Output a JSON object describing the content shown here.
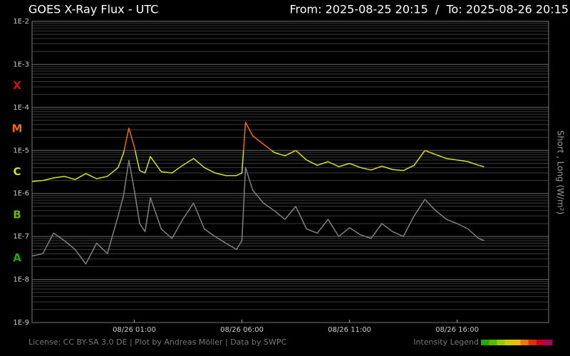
{
  "chart_data": {
    "type": "line",
    "title": "GOES X-Ray Flux - UTC",
    "subtitle": "From: 2025-08-25 20:15  /  To: 2025-08-26 20:15",
    "y_label": "Short , Long (W/m²)",
    "footer": "License: CC BY-SA 3.0 DE | Plot by Andreas Möller | Data by SWPC",
    "intensity_legend": {
      "label": "Intensity Legend",
      "colors": [
        "#22aa00",
        "#55bb00",
        "#99cc00",
        "#cccc00",
        "#eebb00",
        "#ee7700",
        "#dd3300",
        "#cc0022",
        "#aa0055"
      ]
    },
    "log_scale": true,
    "grid": true,
    "classes": [
      {
        "label": "A",
        "value": 1e-08,
        "color": "#22aa00"
      },
      {
        "label": "B",
        "value": 1e-07,
        "color": "#66bb00"
      },
      {
        "label": "C",
        "value": 1e-06,
        "color": "#d4e020"
      },
      {
        "label": "M",
        "value": 1e-05,
        "color": "#ee6a10"
      },
      {
        "label": "X",
        "value": 0.0001,
        "color": "#cc1010"
      }
    ],
    "xlim": [
      "2025-08-25 20:15",
      "2025-08-26 20:15"
    ],
    "xticks": [
      {
        "value": "2025-08-26 01:00",
        "label": "08/26 01:00"
      },
      {
        "value": "2025-08-26 06:00",
        "label": "08/26 06:00"
      },
      {
        "value": "2025-08-26 11:00",
        "label": "08/26 11:00"
      },
      {
        "value": "2025-08-26 16:00",
        "label": "08/26 16:00"
      }
    ],
    "ylim": [
      1e-09,
      0.01
    ],
    "yticks": [
      {
        "value": 1e-09,
        "label": "1E-9"
      },
      {
        "value": 1e-08,
        "label": "1E-8"
      },
      {
        "value": 1e-07,
        "label": "1E-7"
      },
      {
        "value": 1e-06,
        "label": "1E-6"
      },
      {
        "value": 1e-05,
        "label": "1E-5"
      },
      {
        "value": 0.0001,
        "label": "1E-4"
      },
      {
        "value": 0.001,
        "label": "1E-3"
      },
      {
        "value": 0.01,
        "label": "1E-2"
      }
    ],
    "x": [
      "2025-08-25 20:15",
      "2025-08-25 20:45",
      "2025-08-25 21:15",
      "2025-08-25 21:45",
      "2025-08-25 22:15",
      "2025-08-25 22:45",
      "2025-08-25 23:15",
      "2025-08-25 23:45",
      "2025-08-26 00:15",
      "2025-08-26 00:30",
      "2025-08-26 00:45",
      "2025-08-26 01:00",
      "2025-08-26 01:15",
      "2025-08-26 01:30",
      "2025-08-26 01:45",
      "2025-08-26 02:15",
      "2025-08-26 02:45",
      "2025-08-26 03:15",
      "2025-08-26 03:45",
      "2025-08-26 04:15",
      "2025-08-26 04:45",
      "2025-08-26 05:15",
      "2025-08-26 05:45",
      "2025-08-26 06:00",
      "2025-08-26 06:10",
      "2025-08-26 06:30",
      "2025-08-26 07:00",
      "2025-08-26 07:30",
      "2025-08-26 08:00",
      "2025-08-26 08:30",
      "2025-08-26 09:00",
      "2025-08-26 09:30",
      "2025-08-26 10:00",
      "2025-08-26 10:30",
      "2025-08-26 11:00",
      "2025-08-26 11:30",
      "2025-08-26 12:00",
      "2025-08-26 12:30",
      "2025-08-26 13:00",
      "2025-08-26 13:30",
      "2025-08-26 14:00",
      "2025-08-26 14:30",
      "2025-08-26 15:00",
      "2025-08-26 15:30",
      "2025-08-26 16:00",
      "2025-08-26 16:30",
      "2025-08-26 17:00",
      "2025-08-26 17:15"
    ],
    "series": [
      {
        "color": "#808080",
        "values": [
          3.5e-08,
          4e-08,
          1.2e-07,
          8e-08,
          5e-08,
          2.3e-08,
          7e-08,
          4e-08,
          3e-07,
          9e-07,
          5.9e-06,
          1.2e-06,
          2e-07,
          1.3e-07,
          8e-07,
          1.5e-07,
          9e-08,
          2.5e-07,
          6e-07,
          1.5e-07,
          1e-07,
          7e-08,
          5e-08,
          8e-08,
          4e-06,
          1.2e-06,
          6e-07,
          4e-07,
          2.5e-07,
          5e-07,
          1.5e-07,
          1.2e-07,
          2.5e-07,
          1e-07,
          1.6e-07,
          1.1e-07,
          9e-08,
          2e-07,
          1.3e-07,
          1e-07,
          3e-07,
          7.3e-07,
          4e-07,
          2.5e-07,
          2e-07,
          1.5e-07,
          9e-08,
          8e-08
        ]
      },
      {
        "color_by_class": true,
        "values": [
          1.9e-06,
          2e-06,
          2.3e-06,
          2.5e-06,
          2.1e-06,
          2.9e-06,
          2.2e-06,
          2.5e-06,
          4e-06,
          8.7e-06,
          3.3e-05,
          1.2e-05,
          3.4e-06,
          3e-06,
          7.2e-06,
          3.2e-06,
          3e-06,
          4.5e-06,
          6.5e-06,
          4e-06,
          3e-06,
          2.6e-06,
          2.6e-06,
          3e-06,
          4.5e-05,
          2.2e-05,
          1.4e-05,
          9e-06,
          7.5e-06,
          1e-05,
          6e-06,
          4.5e-06,
          5.5e-06,
          4.2e-06,
          5e-06,
          4e-06,
          3.5e-06,
          4.3e-06,
          3.6e-06,
          3.4e-06,
          4.5e-06,
          1e-05,
          8e-06,
          6.5e-06,
          6e-06,
          5.5e-06,
          4.5e-06,
          4.2e-06
        ]
      }
    ]
  }
}
